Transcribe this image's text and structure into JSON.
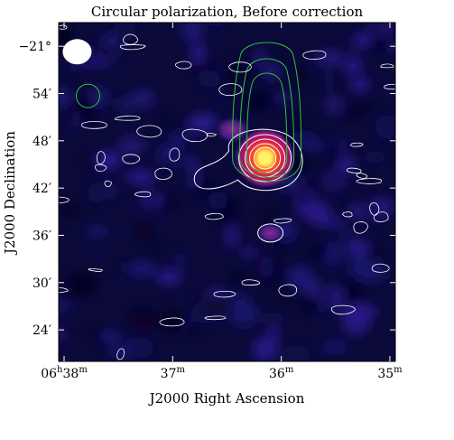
{
  "chart_data": {
    "type": "heatmap",
    "title": "Circular polarization, Before correction",
    "xlabel": "J2000 Right Ascension",
    "ylabel": "J2000 Declination",
    "x_ticks": [
      {
        "label": "06",
        "sup1": "h",
        "mid": "38",
        "sup2": "m",
        "value_min": 38
      },
      {
        "label": "37",
        "sup1": "m",
        "value_min": 37
      },
      {
        "label": "36",
        "sup1": "m",
        "value_min": 36
      },
      {
        "label": "35",
        "sup1": "m",
        "value_min": 35
      }
    ],
    "y_ticks": [
      {
        "label": "24′",
        "value_arcmin": -1176
      },
      {
        "label": "30′",
        "value_arcmin": -1170
      },
      {
        "label": "36′",
        "value_arcmin": -1164
      },
      {
        "label": "42′",
        "value_arcmin": -1158
      },
      {
        "label": "48′",
        "value_arcmin": -1152
      },
      {
        "label": "54′",
        "value_arcmin": -1146
      },
      {
        "label": "−21°",
        "value_arcmin": -1140
      }
    ],
    "xlim_min": [
      38.05,
      34.95
    ],
    "ylim_arcmin": [
      -1180,
      -1137
    ],
    "x_axis_reversed": true,
    "colormap": "cubehelix-like (black → blue → purple → red → yellow → white)",
    "background_color": "#0b0a3a",
    "sources": [
      {
        "name": "bright compact source",
        "ra_min": 36.15,
        "dec_arcmin": -1154.2,
        "peak": 1.0
      },
      {
        "name": "faint northern source",
        "ra_min": 36.1,
        "dec_arcmin": -1163.7,
        "peak": 0.35
      },
      {
        "name": "faint extended blob",
        "ra_min": 36.45,
        "dec_arcmin": -1150.6,
        "peak": 0.25
      }
    ],
    "contours": {
      "polarization": {
        "color": "#ffffff",
        "description": "circular polarization contours"
      },
      "reference": {
        "color": "#35c23a",
        "description": "total intensity contours"
      }
    },
    "beam": {
      "shape": "ellipse",
      "color": "#ffffff",
      "position": "bottom-left"
    },
    "grid": false,
    "legend": null
  }
}
